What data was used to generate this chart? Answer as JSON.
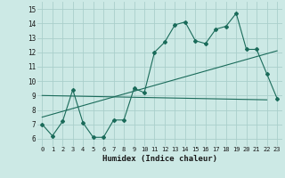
{
  "xlabel": "Humidex (Indice chaleur)",
  "background_color": "#cce9e5",
  "grid_color": "#aacfcb",
  "line_color": "#1a6b5a",
  "xlim": [
    -0.5,
    23.5
  ],
  "ylim": [
    5.5,
    15.5
  ],
  "yticks": [
    6,
    7,
    8,
    9,
    10,
    11,
    12,
    13,
    14,
    15
  ],
  "xticks": [
    0,
    1,
    2,
    3,
    4,
    5,
    6,
    7,
    8,
    9,
    10,
    11,
    12,
    13,
    14,
    15,
    16,
    17,
    18,
    19,
    20,
    21,
    22,
    23
  ],
  "humidex_curve": [
    7.0,
    6.2,
    7.2,
    9.4,
    7.1,
    6.1,
    6.1,
    7.3,
    7.3,
    9.5,
    9.2,
    12.0,
    12.7,
    13.9,
    14.1,
    12.8,
    12.6,
    13.6,
    13.8,
    14.7,
    12.2,
    12.2,
    10.5,
    8.8
  ],
  "line2_x": [
    0,
    23
  ],
  "line2_y": [
    7.5,
    12.1
  ],
  "line3_x": [
    0,
    22
  ],
  "line3_y": [
    9.0,
    8.7
  ]
}
